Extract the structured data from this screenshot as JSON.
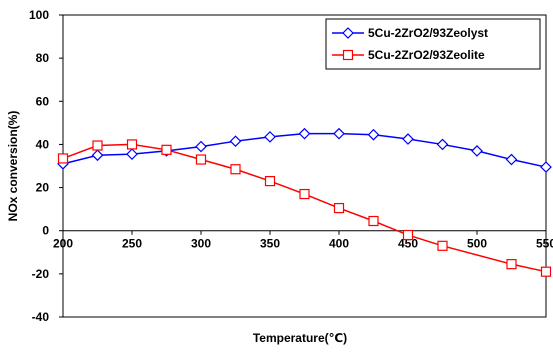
{
  "chart_data": {
    "type": "line",
    "xlabel": "Temperature(℃)",
    "ylabel": "NOx conversion(%)",
    "xlim": [
      200,
      550
    ],
    "ylim": [
      -40,
      100
    ],
    "x_ticks": [
      200,
      250,
      300,
      350,
      400,
      450,
      500,
      550
    ],
    "y_ticks": [
      -40,
      -20,
      0,
      20,
      40,
      60,
      80,
      100
    ],
    "grid": false,
    "legend_position": "top-right",
    "x": [
      200,
      225,
      250,
      275,
      300,
      325,
      350,
      375,
      400,
      425,
      450,
      475,
      500,
      525,
      550
    ],
    "series": [
      {
        "name": "5Cu-2ZrO2/93Zeolyst",
        "color": "#0000ff",
        "marker": "diamond",
        "values": [
          31,
          35,
          35.5,
          37,
          39,
          41.5,
          43.5,
          45,
          45,
          44.5,
          42.5,
          40,
          37,
          33,
          29.5
        ]
      },
      {
        "name": "5Cu-2ZrO2/93Zeolite",
        "color": "#ff0000",
        "marker": "square",
        "values": [
          33.5,
          39.5,
          40,
          37.5,
          33,
          28.5,
          23,
          17,
          10.5,
          4.5,
          -2,
          -7,
          null,
          -15.5,
          -19
        ]
      }
    ]
  }
}
